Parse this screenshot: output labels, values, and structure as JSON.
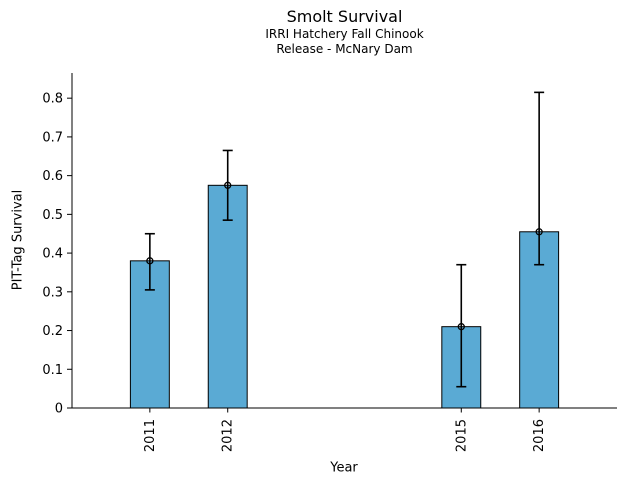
{
  "chart_data": {
    "type": "bar",
    "title": "Smolt Survival",
    "subtitle": [
      "IRRI Hatchery Fall Chinook",
      "Release - McNary Dam"
    ],
    "xlabel": "Year",
    "ylabel": "PIT-Tag Survival",
    "categories": [
      "2011",
      "2012",
      "2015",
      "2016"
    ],
    "x_numeric": [
      2011,
      2012,
      2015,
      2016
    ],
    "values": [
      0.38,
      0.575,
      0.21,
      0.455
    ],
    "error_low": [
      0.305,
      0.485,
      0.055,
      0.37
    ],
    "error_high": [
      0.45,
      0.665,
      0.37,
      0.815
    ],
    "yticks": [
      0,
      0.1,
      0.2,
      0.3,
      0.4,
      0.5,
      0.6,
      0.7,
      0.8
    ],
    "ytick_labels": [
      "0",
      "0.1",
      "0.2",
      "0.3",
      "0.4",
      "0.5",
      "0.6",
      "0.7",
      "0.8"
    ],
    "xlim": [
      2010,
      2017
    ],
    "ylim": [
      0,
      0.865
    ],
    "bar_width_years": 0.5,
    "xtick_rotation_deg": 90,
    "grid": false,
    "legend": null,
    "marker": "open-circle",
    "colors": {
      "bar_fill": "#5AAAD4",
      "bar_edge": "#000000",
      "errorbar": "#000000",
      "axis": "#000000",
      "text": "#000000",
      "background": "#ffffff"
    }
  }
}
